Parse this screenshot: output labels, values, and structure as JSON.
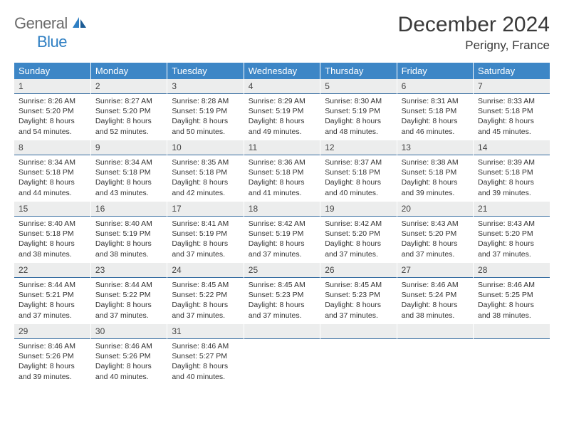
{
  "logo": {
    "top": "General",
    "bottom": "Blue"
  },
  "title": "December 2024",
  "location": "Perigny, France",
  "colors": {
    "header_bg": "#3d86c6",
    "header_text": "#ffffff",
    "daynum_bg": "#eceded",
    "daynum_border": "#356ca0",
    "logo_gray": "#6b6b6b",
    "logo_blue": "#2f7fc3",
    "text": "#333333"
  },
  "weekdays": [
    "Sunday",
    "Monday",
    "Tuesday",
    "Wednesday",
    "Thursday",
    "Friday",
    "Saturday"
  ],
  "weeks": [
    [
      {
        "n": "1",
        "sr": "8:26 AM",
        "ss": "5:20 PM",
        "dl": "8 hours and 54 minutes."
      },
      {
        "n": "2",
        "sr": "8:27 AM",
        "ss": "5:20 PM",
        "dl": "8 hours and 52 minutes."
      },
      {
        "n": "3",
        "sr": "8:28 AM",
        "ss": "5:19 PM",
        "dl": "8 hours and 50 minutes."
      },
      {
        "n": "4",
        "sr": "8:29 AM",
        "ss": "5:19 PM",
        "dl": "8 hours and 49 minutes."
      },
      {
        "n": "5",
        "sr": "8:30 AM",
        "ss": "5:19 PM",
        "dl": "8 hours and 48 minutes."
      },
      {
        "n": "6",
        "sr": "8:31 AM",
        "ss": "5:18 PM",
        "dl": "8 hours and 46 minutes."
      },
      {
        "n": "7",
        "sr": "8:33 AM",
        "ss": "5:18 PM",
        "dl": "8 hours and 45 minutes."
      }
    ],
    [
      {
        "n": "8",
        "sr": "8:34 AM",
        "ss": "5:18 PM",
        "dl": "8 hours and 44 minutes."
      },
      {
        "n": "9",
        "sr": "8:34 AM",
        "ss": "5:18 PM",
        "dl": "8 hours and 43 minutes."
      },
      {
        "n": "10",
        "sr": "8:35 AM",
        "ss": "5:18 PM",
        "dl": "8 hours and 42 minutes."
      },
      {
        "n": "11",
        "sr": "8:36 AM",
        "ss": "5:18 PM",
        "dl": "8 hours and 41 minutes."
      },
      {
        "n": "12",
        "sr": "8:37 AM",
        "ss": "5:18 PM",
        "dl": "8 hours and 40 minutes."
      },
      {
        "n": "13",
        "sr": "8:38 AM",
        "ss": "5:18 PM",
        "dl": "8 hours and 39 minutes."
      },
      {
        "n": "14",
        "sr": "8:39 AM",
        "ss": "5:18 PM",
        "dl": "8 hours and 39 minutes."
      }
    ],
    [
      {
        "n": "15",
        "sr": "8:40 AM",
        "ss": "5:18 PM",
        "dl": "8 hours and 38 minutes."
      },
      {
        "n": "16",
        "sr": "8:40 AM",
        "ss": "5:19 PM",
        "dl": "8 hours and 38 minutes."
      },
      {
        "n": "17",
        "sr": "8:41 AM",
        "ss": "5:19 PM",
        "dl": "8 hours and 37 minutes."
      },
      {
        "n": "18",
        "sr": "8:42 AM",
        "ss": "5:19 PM",
        "dl": "8 hours and 37 minutes."
      },
      {
        "n": "19",
        "sr": "8:42 AM",
        "ss": "5:20 PM",
        "dl": "8 hours and 37 minutes."
      },
      {
        "n": "20",
        "sr": "8:43 AM",
        "ss": "5:20 PM",
        "dl": "8 hours and 37 minutes."
      },
      {
        "n": "21",
        "sr": "8:43 AM",
        "ss": "5:20 PM",
        "dl": "8 hours and 37 minutes."
      }
    ],
    [
      {
        "n": "22",
        "sr": "8:44 AM",
        "ss": "5:21 PM",
        "dl": "8 hours and 37 minutes."
      },
      {
        "n": "23",
        "sr": "8:44 AM",
        "ss": "5:22 PM",
        "dl": "8 hours and 37 minutes."
      },
      {
        "n": "24",
        "sr": "8:45 AM",
        "ss": "5:22 PM",
        "dl": "8 hours and 37 minutes."
      },
      {
        "n": "25",
        "sr": "8:45 AM",
        "ss": "5:23 PM",
        "dl": "8 hours and 37 minutes."
      },
      {
        "n": "26",
        "sr": "8:45 AM",
        "ss": "5:23 PM",
        "dl": "8 hours and 37 minutes."
      },
      {
        "n": "27",
        "sr": "8:46 AM",
        "ss": "5:24 PM",
        "dl": "8 hours and 38 minutes."
      },
      {
        "n": "28",
        "sr": "8:46 AM",
        "ss": "5:25 PM",
        "dl": "8 hours and 38 minutes."
      }
    ],
    [
      {
        "n": "29",
        "sr": "8:46 AM",
        "ss": "5:26 PM",
        "dl": "8 hours and 39 minutes."
      },
      {
        "n": "30",
        "sr": "8:46 AM",
        "ss": "5:26 PM",
        "dl": "8 hours and 40 minutes."
      },
      {
        "n": "31",
        "sr": "8:46 AM",
        "ss": "5:27 PM",
        "dl": "8 hours and 40 minutes."
      },
      null,
      null,
      null,
      null
    ]
  ],
  "labels": {
    "sunrise": "Sunrise: ",
    "sunset": "Sunset: ",
    "daylight": "Daylight: "
  }
}
